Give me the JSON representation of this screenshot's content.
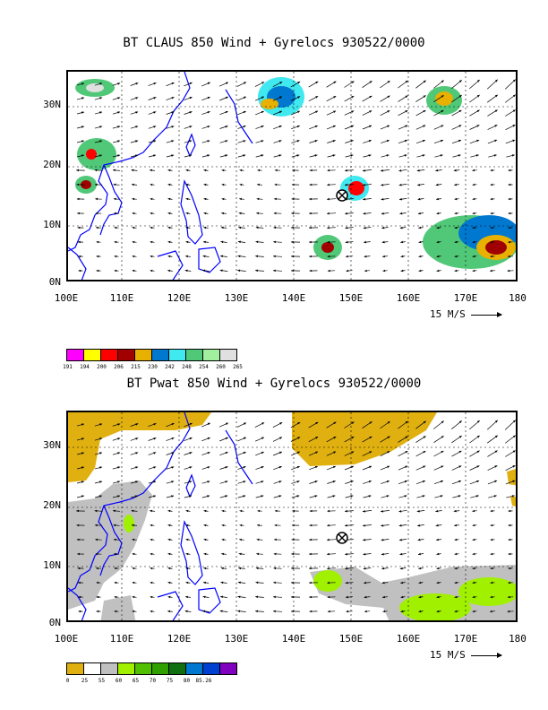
{
  "panel1": {
    "title": "BT CLAUS 850 Wind + Gyrelocs 930522/0000",
    "lat_labels": [
      "30N",
      "20N",
      "10N",
      "0N"
    ],
    "lon_labels": [
      "100E",
      "110E",
      "120E",
      "130E",
      "140E",
      "150E",
      "160E",
      "170E",
      "180"
    ],
    "scale_label": "15 M/S",
    "colorbar": {
      "colors": [
        "#ff00ff",
        "#ffff00",
        "#ff0000",
        "#a00000",
        "#e8b000",
        "#0078d0",
        "#40e8f0",
        "#50c878",
        "#a0f0a0",
        "#e0e0e0"
      ],
      "ticks": [
        "191",
        "194",
        "200",
        "206",
        "215",
        "230",
        "242",
        "248",
        "254",
        "260",
        "265"
      ]
    }
  },
  "panel2": {
    "title": "BT Pwat 850 Wind + Gyrelocs 930522/0000",
    "lat_labels": [
      "30N",
      "20N",
      "10N",
      "0N"
    ],
    "lon_labels": [
      "100E",
      "110E",
      "120E",
      "130E",
      "140E",
      "150E",
      "160E",
      "170E",
      "180"
    ],
    "scale_label": "15 M/S",
    "colorbar": {
      "colors": [
        "#e0b010",
        "#ffffff",
        "#c0c0c0",
        "#a0f000",
        "#50c000",
        "#30a000",
        "#107010",
        "#0078d0",
        "#0040d0",
        "#8000c0"
      ],
      "ticks": [
        "0",
        "25",
        "55",
        "60",
        "65",
        "70",
        "75",
        "80",
        "85.26"
      ]
    }
  },
  "colors": {
    "coast": "#0000ff",
    "grid": "#000000"
  }
}
